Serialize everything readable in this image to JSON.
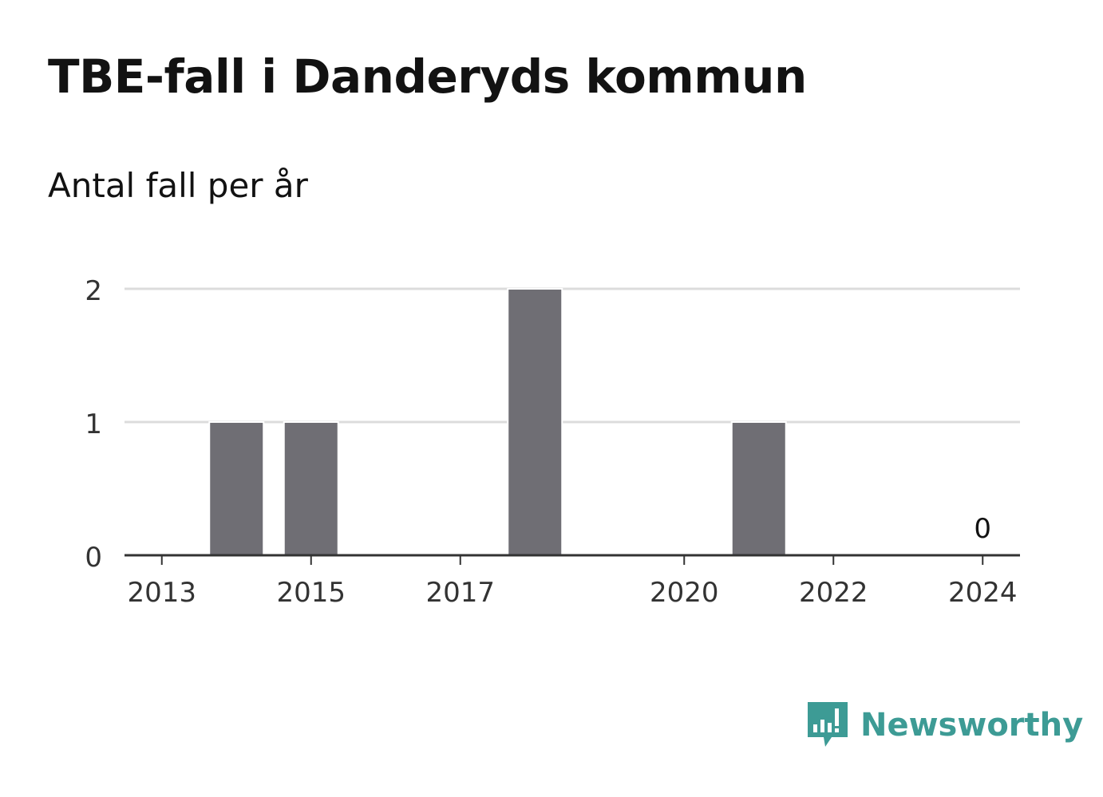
{
  "title": "TBE-fall i Danderyds kommun",
  "subtitle": "Antal fall per år",
  "brand": {
    "name": "Newsworthy",
    "icon": "bar-chart-speech-bubble-icon",
    "color": "#3d9b95"
  },
  "chart_data": {
    "type": "bar",
    "title": "TBE-fall i Danderyds kommun",
    "subtitle": "Antal fall per år",
    "categories": [
      "2013",
      "2014",
      "2015",
      "2016",
      "2017",
      "2018",
      "2019",
      "2020",
      "2021",
      "2022",
      "2023",
      "2024"
    ],
    "values": [
      0,
      1,
      1,
      0,
      0,
      2,
      0,
      0,
      1,
      0,
      0,
      0
    ],
    "x_tick_labels": [
      "2013",
      "2015",
      "2017",
      "2020",
      "2022",
      "2024"
    ],
    "y_ticks": [
      0,
      1,
      2
    ],
    "ylim": [
      0,
      2
    ],
    "data_labels": [
      {
        "category": "2024",
        "text": "0"
      }
    ],
    "xlabel": "",
    "ylabel": "",
    "grid": true,
    "bar_color": "#6f6e74",
    "grid_color": "#dcdcdc",
    "axis_color": "#333333"
  }
}
